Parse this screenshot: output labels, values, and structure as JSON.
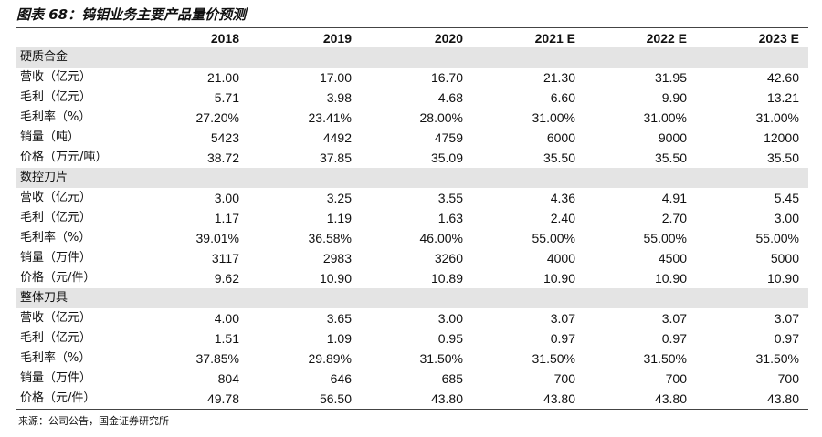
{
  "header": {
    "title": "图表 68：钨钼业务主要产品量价预测"
  },
  "table": {
    "columns": [
      "2018",
      "2019",
      "2020",
      "2021 E",
      "2022 E",
      "2023 E"
    ],
    "sections": [
      {
        "name": "硬质合金",
        "rows": [
          {
            "label": "营收（亿元）",
            "values": [
              "21.00",
              "17.00",
              "16.70",
              "21.30",
              "31.95",
              "42.60"
            ]
          },
          {
            "label": "毛利（亿元）",
            "values": [
              "5.71",
              "3.98",
              "4.68",
              "6.60",
              "9.90",
              "13.21"
            ]
          },
          {
            "label": "毛利率（%）",
            "values": [
              "27.20%",
              "23.41%",
              "28.00%",
              "31.00%",
              "31.00%",
              "31.00%"
            ]
          },
          {
            "label": "销量（吨）",
            "values": [
              "5423",
              "4492",
              "4759",
              "6000",
              "9000",
              "12000"
            ]
          },
          {
            "label": "价格（万元/吨）",
            "values": [
              "38.72",
              "37.85",
              "35.09",
              "35.50",
              "35.50",
              "35.50"
            ]
          }
        ]
      },
      {
        "name": "数控刀片",
        "rows": [
          {
            "label": "营收（亿元）",
            "values": [
              "3.00",
              "3.25",
              "3.55",
              "4.36",
              "4.91",
              "5.45"
            ]
          },
          {
            "label": "毛利（亿元）",
            "values": [
              "1.17",
              "1.19",
              "1.63",
              "2.40",
              "2.70",
              "3.00"
            ]
          },
          {
            "label": "毛利率（%）",
            "values": [
              "39.01%",
              "36.58%",
              "46.00%",
              "55.00%",
              "55.00%",
              "55.00%"
            ]
          },
          {
            "label": "销量（万件）",
            "values": [
              "3117",
              "2983",
              "3260",
              "4000",
              "4500",
              "5000"
            ]
          },
          {
            "label": "价格（元/件）",
            "values": [
              "9.62",
              "10.90",
              "10.89",
              "10.90",
              "10.90",
              "10.90"
            ]
          }
        ]
      },
      {
        "name": "整体刀具",
        "rows": [
          {
            "label": "营收（亿元）",
            "values": [
              "4.00",
              "3.65",
              "3.00",
              "3.07",
              "3.07",
              "3.07"
            ]
          },
          {
            "label": "毛利（亿元）",
            "values": [
              "1.51",
              "1.09",
              "0.95",
              "0.97",
              "0.97",
              "0.97"
            ]
          },
          {
            "label": "毛利率（%）",
            "values": [
              "37.85%",
              "29.89%",
              "31.50%",
              "31.50%",
              "31.50%",
              "31.50%"
            ]
          },
          {
            "label": "销量（万件）",
            "values": [
              "804",
              "646",
              "685",
              "700",
              "700",
              "700"
            ]
          },
          {
            "label": "价格（元/件）",
            "values": [
              "49.78",
              "56.50",
              "43.80",
              "43.80",
              "43.80",
              "43.80"
            ]
          }
        ]
      }
    ]
  },
  "footer": {
    "source": "来源：公司公告，国金证券研究所"
  }
}
